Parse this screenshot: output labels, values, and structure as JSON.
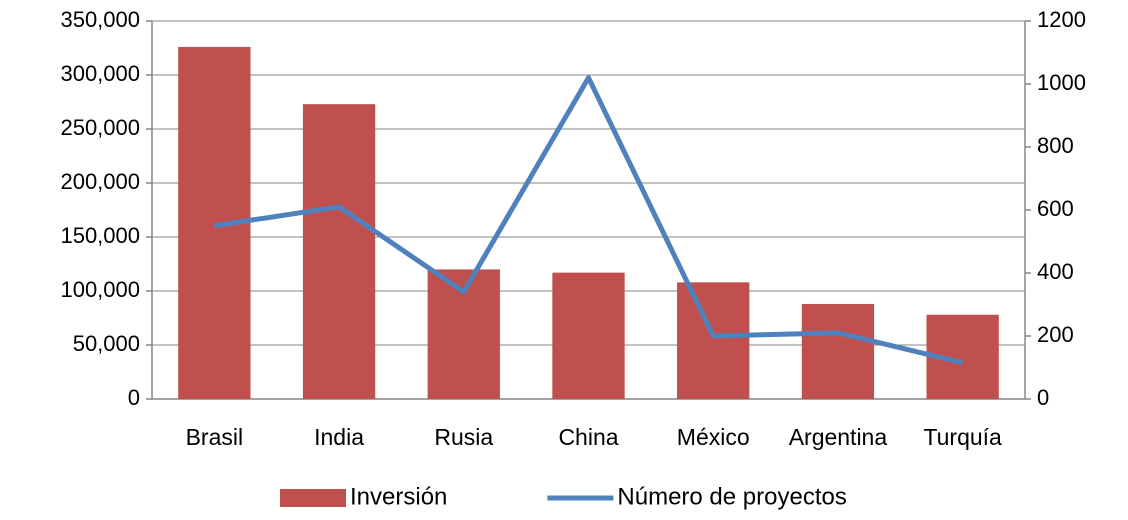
{
  "chart_data": {
    "type": "bar",
    "categories": [
      "Brasil",
      "India",
      "Rusia",
      "China",
      "México",
      "Argentina",
      "Turquía"
    ],
    "series": [
      {
        "name": "Inversión",
        "type": "bar",
        "color": "#c0504d",
        "values": [
          326000,
          273000,
          120000,
          117000,
          108000,
          88000,
          78000
        ]
      },
      {
        "name": "Número de proyectos",
        "type": "line",
        "axis": "y2",
        "color": "#4f81bd",
        "values": [
          550,
          610,
          340,
          1020,
          200,
          210,
          115
        ]
      }
    ],
    "ylim": [
      0,
      350000
    ],
    "yticks": [
      0,
      {
        "value": 50000,
        "label": "50,000"
      },
      {
        "value": 100000,
        "label": "100,000"
      },
      {
        "value": 150000,
        "label": "150,000"
      },
      {
        "value": 200000,
        "label": "200,000"
      },
      {
        "value": 250000,
        "label": "250,000"
      },
      {
        "value": 300000,
        "label": "300,000"
      },
      {
        "value": 350000,
        "label": "350,000"
      }
    ],
    "y2lim": [
      0,
      1200
    ],
    "y2ticks": [
      0,
      200,
      400,
      600,
      800,
      1000,
      1200
    ],
    "grid": true,
    "legend": "bottom"
  }
}
